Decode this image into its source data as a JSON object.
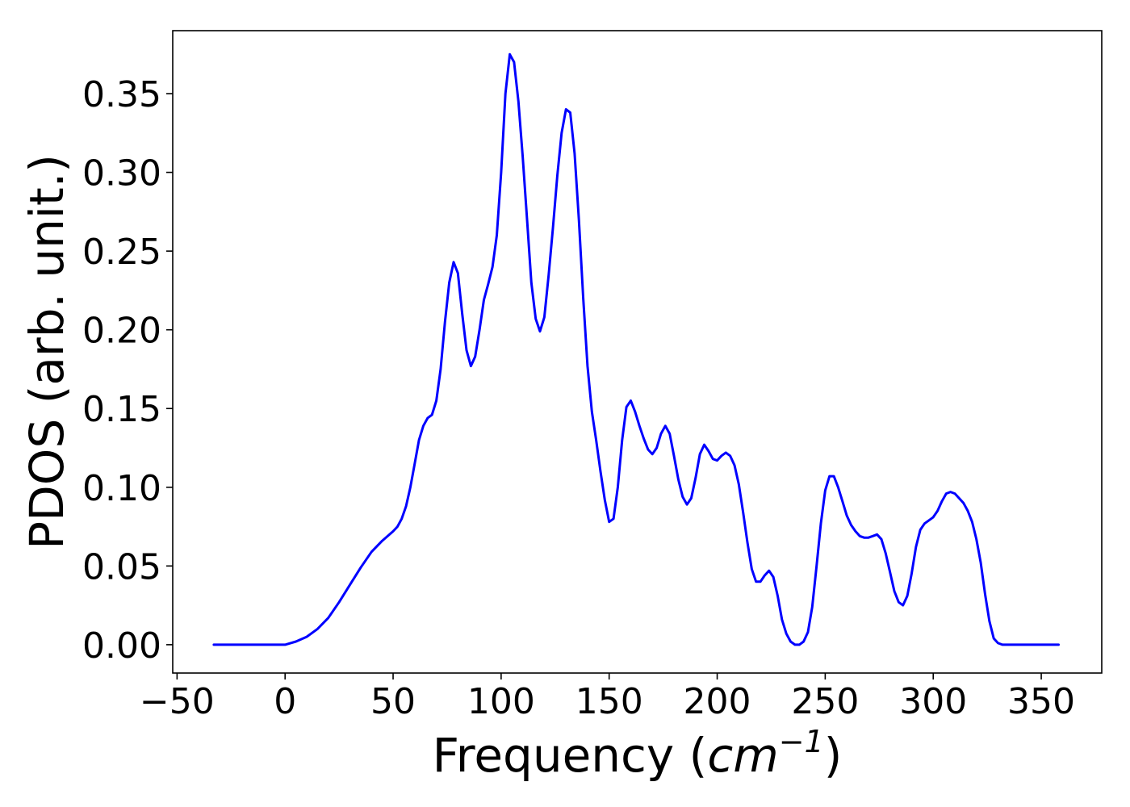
{
  "chart_data": {
    "type": "line",
    "xlabel_text": "Frequency (",
    "xlabel_unit_base": "cm",
    "xlabel_unit_exp": "−1",
    "xlabel_close": ")",
    "ylabel": "PDOS (arb. unit.)",
    "xlim": [
      -52,
      378
    ],
    "ylim": [
      -0.018,
      0.39
    ],
    "xticks": [
      -50,
      0,
      50,
      100,
      150,
      200,
      250,
      300,
      350
    ],
    "xtick_labels": [
      "−50",
      "0",
      "50",
      "100",
      "150",
      "200",
      "250",
      "300",
      "350"
    ],
    "yticks": [
      0.0,
      0.05,
      0.1,
      0.15,
      0.2,
      0.25,
      0.3,
      0.35
    ],
    "ytick_labels": [
      "0.00",
      "0.05",
      "0.10",
      "0.15",
      "0.20",
      "0.25",
      "0.30",
      "0.35"
    ],
    "grid": false,
    "legend": "none",
    "series": [
      {
        "color": "#0000ff",
        "x": [
          -33,
          -20,
          -10,
          0,
          5,
          10,
          15,
          20,
          25,
          30,
          35,
          40,
          45,
          50,
          52,
          54,
          56,
          58,
          60,
          62,
          64,
          66,
          68,
          70,
          72,
          74,
          76,
          78,
          80,
          82,
          84,
          86,
          88,
          90,
          92,
          94,
          96,
          98,
          100,
          102,
          104,
          106,
          108,
          110,
          112,
          114,
          116,
          118,
          120,
          122,
          124,
          126,
          128,
          130,
          132,
          134,
          136,
          138,
          140,
          142,
          144,
          146,
          148,
          150,
          152,
          154,
          156,
          158,
          160,
          162,
          164,
          166,
          168,
          170,
          172,
          174,
          176,
          178,
          180,
          182,
          184,
          186,
          188,
          190,
          192,
          194,
          196,
          198,
          200,
          202,
          204,
          206,
          208,
          210,
          212,
          214,
          216,
          218,
          220,
          222,
          224,
          226,
          228,
          230,
          232,
          234,
          236,
          238,
          240,
          242,
          244,
          246,
          248,
          250,
          252,
          254,
          256,
          258,
          260,
          262,
          264,
          266,
          268,
          270,
          272,
          274,
          276,
          278,
          280,
          282,
          284,
          286,
          288,
          290,
          292,
          294,
          296,
          298,
          300,
          302,
          304,
          306,
          308,
          310,
          312,
          314,
          316,
          318,
          320,
          322,
          324,
          326,
          328,
          330,
          332,
          334,
          340,
          350,
          358
        ],
        "y": [
          0.0,
          0.0,
          0.0,
          0.0,
          0.002,
          0.005,
          0.01,
          0.017,
          0.027,
          0.038,
          0.049,
          0.059,
          0.066,
          0.072,
          0.075,
          0.08,
          0.088,
          0.1,
          0.115,
          0.13,
          0.139,
          0.144,
          0.146,
          0.155,
          0.175,
          0.205,
          0.23,
          0.243,
          0.236,
          0.21,
          0.187,
          0.177,
          0.183,
          0.2,
          0.219,
          0.229,
          0.24,
          0.26,
          0.3,
          0.35,
          0.375,
          0.37,
          0.345,
          0.31,
          0.27,
          0.23,
          0.207,
          0.199,
          0.208,
          0.235,
          0.265,
          0.298,
          0.325,
          0.34,
          0.338,
          0.312,
          0.27,
          0.22,
          0.177,
          0.148,
          0.13,
          0.11,
          0.092,
          0.078,
          0.08,
          0.1,
          0.13,
          0.151,
          0.155,
          0.148,
          0.139,
          0.131,
          0.124,
          0.121,
          0.125,
          0.134,
          0.139,
          0.134,
          0.12,
          0.105,
          0.094,
          0.089,
          0.093,
          0.106,
          0.121,
          0.127,
          0.123,
          0.118,
          0.117,
          0.12,
          0.122,
          0.12,
          0.114,
          0.102,
          0.084,
          0.065,
          0.048,
          0.04,
          0.04,
          0.044,
          0.047,
          0.043,
          0.031,
          0.016,
          0.007,
          0.002,
          0.0,
          0.0,
          0.002,
          0.008,
          0.024,
          0.05,
          0.077,
          0.098,
          0.107,
          0.107,
          0.1,
          0.091,
          0.082,
          0.076,
          0.072,
          0.069,
          0.068,
          0.068,
          0.069,
          0.07,
          0.067,
          0.058,
          0.046,
          0.034,
          0.027,
          0.025,
          0.031,
          0.045,
          0.062,
          0.073,
          0.077,
          0.079,
          0.081,
          0.085,
          0.091,
          0.096,
          0.097,
          0.096,
          0.093,
          0.09,
          0.085,
          0.078,
          0.067,
          0.052,
          0.032,
          0.015,
          0.004,
          0.001,
          0.0,
          0.0,
          0.0,
          0.0,
          0.0
        ]
      }
    ]
  }
}
